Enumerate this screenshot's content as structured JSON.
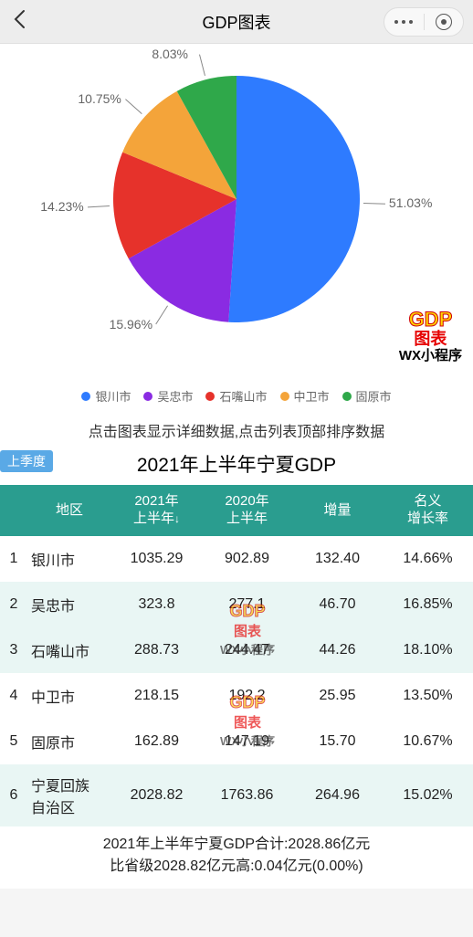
{
  "nav": {
    "title": "GDP图表"
  },
  "pie": {
    "size": 280,
    "slices": [
      {
        "label": "银川市",
        "value": 51.03,
        "color": "#2e7bff"
      },
      {
        "label": "吴忠市",
        "value": 15.96,
        "color": "#8a2be2"
      },
      {
        "label": "石嘴山市",
        "value": 14.23,
        "color": "#e6322b"
      },
      {
        "label": "中卫市",
        "value": 10.75,
        "color": "#f4a43a"
      },
      {
        "label": "固原市",
        "value": 8.03,
        "color": "#2fa84a"
      }
    ],
    "label_suffix": "%",
    "label_fontsize": 14,
    "label_color": "#666666"
  },
  "logo": {
    "line1": "GDP",
    "line2": "图表",
    "line3": "WX小程序"
  },
  "legend": [
    {
      "label": "银川市",
      "color": "#2e7bff"
    },
    {
      "label": "吴忠市",
      "color": "#8a2be2"
    },
    {
      "label": "石嘴山市",
      "color": "#e6322b"
    },
    {
      "label": "中卫市",
      "color": "#f4a43a"
    },
    {
      "label": "固原市",
      "color": "#2fa84a"
    }
  ],
  "hint": "点击图表显示详细数据,点击列表顶部排序数据",
  "table": {
    "quarter_tab": "上季度",
    "title": "2021年上半年宁夏GDP",
    "header_bg": "#2a9d8f",
    "row_alt_bg": "#e9f6f4",
    "columns": {
      "region": "地区",
      "col_a": "2021年\n上半年",
      "col_b": "2020年\n上半年",
      "col_c": "增量",
      "col_d": "名义\n增长率"
    },
    "sort_indicator": "↓",
    "rows": [
      {
        "idx": "1",
        "region": "银川市",
        "a": "1035.29",
        "b": "902.89",
        "c": "132.40",
        "d": "14.66%"
      },
      {
        "idx": "2",
        "region": "吴忠市",
        "a": "323.8",
        "b": "277.1",
        "c": "46.70",
        "d": "16.85%"
      },
      {
        "idx": "3",
        "region": "石嘴山市",
        "a": "288.73",
        "b": "244.47",
        "c": "44.26",
        "d": "18.10%"
      },
      {
        "idx": "4",
        "region": "中卫市",
        "a": "218.15",
        "b": "192.2",
        "c": "25.95",
        "d": "13.50%"
      },
      {
        "idx": "5",
        "region": "固原市",
        "a": "162.89",
        "b": "147.19",
        "c": "15.70",
        "d": "10.67%"
      },
      {
        "idx": "6",
        "region": "宁夏回族\n自治区",
        "a": "2028.82",
        "b": "1763.86",
        "c": "264.96",
        "d": "15.02%"
      }
    ]
  },
  "footer": {
    "line1": "2021年上半年宁夏GDP合计:2028.86亿元",
    "line2": "比省级2028.82亿元高:0.04亿元(0.00%)"
  }
}
